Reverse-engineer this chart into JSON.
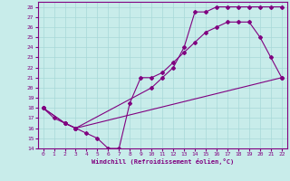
{
  "xlabel": "Windchill (Refroidissement éolien,°C)",
  "bg_color": "#c8ecea",
  "line_color": "#800080",
  "grid_color": "#a8d8d8",
  "xlim": [
    -0.5,
    22.5
  ],
  "ylim": [
    14,
    28.5
  ],
  "xticks": [
    0,
    1,
    2,
    3,
    4,
    5,
    6,
    7,
    8,
    9,
    10,
    11,
    12,
    13,
    14,
    15,
    16,
    17,
    18,
    19,
    20,
    21,
    22
  ],
  "yticks": [
    14,
    15,
    16,
    17,
    18,
    19,
    20,
    21,
    22,
    23,
    24,
    25,
    26,
    27,
    28
  ],
  "series": [
    {
      "x": [
        0,
        1,
        2,
        3,
        10,
        11,
        12,
        13,
        14,
        15,
        16,
        17,
        18,
        19,
        20,
        21,
        22
      ],
      "y": [
        18,
        17,
        16.5,
        16,
        20,
        21,
        22,
        24,
        27.5,
        27.5,
        28,
        28,
        28,
        28,
        28,
        28,
        28
      ]
    },
    {
      "x": [
        0,
        2,
        3,
        4,
        5,
        6,
        7,
        8,
        9,
        10,
        11,
        12,
        13,
        14,
        15,
        16,
        17,
        18,
        19,
        20,
        21,
        22
      ],
      "y": [
        18,
        16.5,
        16,
        15.5,
        15,
        14,
        14,
        18.5,
        21,
        21,
        21.5,
        22.5,
        23.5,
        24.5,
        25.5,
        26,
        26.5,
        26.5,
        26.5,
        25,
        23,
        21
      ]
    },
    {
      "x": [
        0,
        2,
        3,
        22
      ],
      "y": [
        18,
        16.5,
        16,
        21
      ]
    }
  ]
}
